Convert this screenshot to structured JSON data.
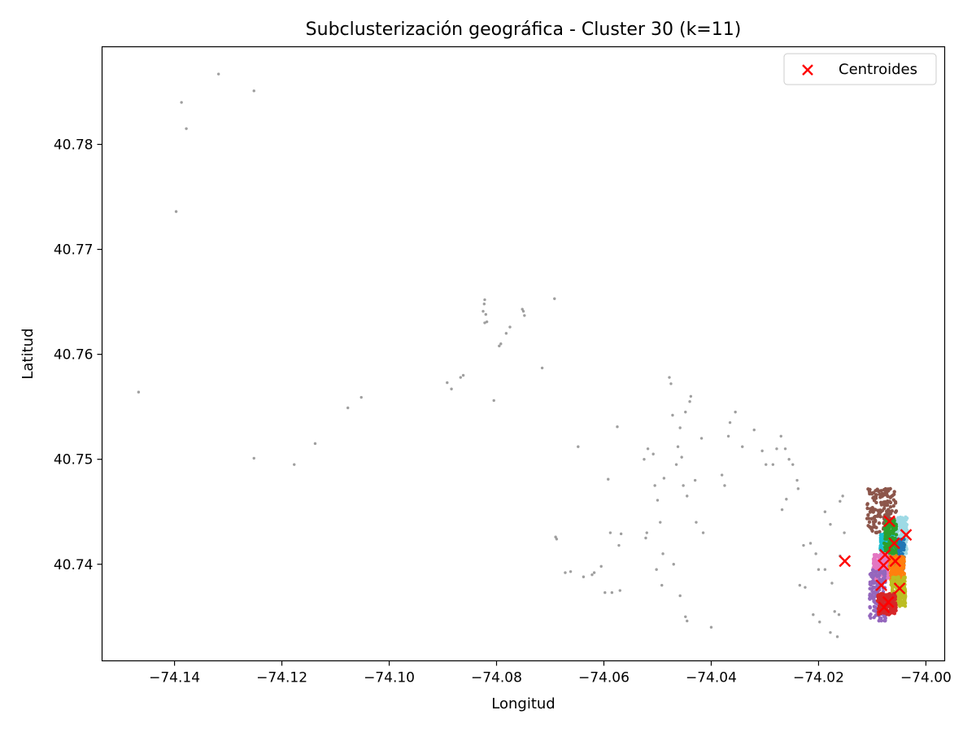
{
  "chart_data": {
    "type": "scatter",
    "title": "Subclusterización geográfica - Cluster 30 (k=11)",
    "xlabel": "Longitud",
    "ylabel": "Latitud",
    "xlim": [
      -74.1535,
      -73.9965
    ],
    "ylim": [
      40.7308,
      40.7893
    ],
    "x_ticks": [
      -74.14,
      -74.12,
      -74.1,
      -74.08,
      -74.06,
      -74.04,
      -74.02,
      -74.0
    ],
    "x_tick_labels": [
      "−74.14",
      "−74.12",
      "−74.10",
      "−74.08",
      "−74.06",
      "−74.04",
      "−74.02",
      "−74.00"
    ],
    "y_ticks": [
      40.74,
      40.75,
      40.76,
      40.77,
      40.78
    ],
    "y_tick_labels": [
      "40.74",
      "40.75",
      "40.76",
      "40.77",
      "40.78"
    ],
    "grid": false,
    "legend": {
      "position": "top-right",
      "entries": [
        {
          "label": "Centroides",
          "marker": "x",
          "color": "#ff0000"
        }
      ]
    },
    "series": [
      {
        "name": "",
        "color": "#7f7f7f",
        "marker": "dot",
        "points": [
          [
            -74.1318,
            40.7867
          ],
          [
            -74.1252,
            40.7851
          ],
          [
            -74.1387,
            40.784
          ],
          [
            -74.1378,
            40.7815
          ],
          [
            -74.1397,
            40.7736
          ],
          [
            -74.1467,
            40.7564
          ],
          [
            -74.1252,
            40.7501
          ],
          [
            -74.1177,
            40.7495
          ],
          [
            -74.1138,
            40.7515
          ],
          [
            -74.1077,
            40.7549
          ],
          [
            -74.1052,
            40.7559
          ],
          [
            -74.0892,
            40.7573
          ],
          [
            -74.0884,
            40.7567
          ],
          [
            -74.0867,
            40.7578
          ],
          [
            -74.0862,
            40.758
          ],
          [
            -74.0822,
            40.7652
          ],
          [
            -74.0823,
            40.7648
          ],
          [
            -74.0825,
            40.7641
          ],
          [
            -74.082,
            40.7638
          ],
          [
            -74.0818,
            40.7631
          ],
          [
            -74.0822,
            40.763
          ],
          [
            -74.0775,
            40.7626
          ],
          [
            -74.0782,
            40.762
          ],
          [
            -74.0792,
            40.761
          ],
          [
            -74.0795,
            40.7608
          ],
          [
            -74.0752,
            40.7643
          ],
          [
            -74.075,
            40.7641
          ],
          [
            -74.0748,
            40.7637
          ],
          [
            -74.0692,
            40.7653
          ],
          [
            -74.0715,
            40.7587
          ],
          [
            -74.0805,
            40.7556
          ],
          [
            -74.0688,
            40.7424
          ],
          [
            -74.069,
            40.7426
          ],
          [
            -74.0648,
            40.7512
          ],
          [
            -74.0662,
            40.7393
          ],
          [
            -74.0672,
            40.7392
          ],
          [
            -74.0638,
            40.7388
          ],
          [
            -74.0618,
            40.7392
          ],
          [
            -74.0622,
            40.739
          ],
          [
            -74.0605,
            40.7398
          ],
          [
            -74.0598,
            40.7373
          ],
          [
            -74.0585,
            40.7373
          ],
          [
            -74.057,
            40.7375
          ],
          [
            -74.0575,
            40.7531
          ],
          [
            -74.0592,
            40.7481
          ],
          [
            -74.0588,
            40.743
          ],
          [
            -74.0572,
            40.7418
          ],
          [
            -74.0568,
            40.7429
          ],
          [
            -74.0525,
            40.75
          ],
          [
            -74.0508,
            40.7505
          ],
          [
            -74.0518,
            40.751
          ],
          [
            -74.0488,
            40.7482
          ],
          [
            -74.05,
            40.7461
          ],
          [
            -74.0505,
            40.7475
          ],
          [
            -74.0495,
            40.744
          ],
          [
            -74.052,
            40.743
          ],
          [
            -74.0522,
            40.7425
          ],
          [
            -74.049,
            40.741
          ],
          [
            -74.0502,
            40.7395
          ],
          [
            -74.0492,
            40.738
          ],
          [
            -74.0472,
            40.7542
          ],
          [
            -74.0478,
            40.7578
          ],
          [
            -74.0475,
            40.7572
          ],
          [
            -74.0458,
            40.753
          ],
          [
            -74.0448,
            40.7545
          ],
          [
            -74.044,
            40.7555
          ],
          [
            -74.0438,
            40.756
          ],
          [
            -74.0418,
            40.752
          ],
          [
            -74.0462,
            40.7512
          ],
          [
            -74.0455,
            40.7502
          ],
          [
            -74.0465,
            40.7495
          ],
          [
            -74.0452,
            40.7475
          ],
          [
            -74.0445,
            40.7465
          ],
          [
            -74.043,
            40.748
          ],
          [
            -74.0428,
            40.744
          ],
          [
            -74.0415,
            40.743
          ],
          [
            -74.047,
            40.74
          ],
          [
            -74.0458,
            40.737
          ],
          [
            -74.0448,
            40.735
          ],
          [
            -74.0445,
            40.7346
          ],
          [
            -74.04,
            40.734
          ],
          [
            -74.038,
            40.7485
          ],
          [
            -74.0375,
            40.7475
          ],
          [
            -74.0368,
            40.7522
          ],
          [
            -74.0365,
            40.7535
          ],
          [
            -74.0355,
            40.7545
          ],
          [
            -74.0342,
            40.7512
          ],
          [
            -74.032,
            40.7528
          ],
          [
            -74.0305,
            40.7508
          ],
          [
            -74.0298,
            40.7495
          ],
          [
            -74.0285,
            40.7495
          ],
          [
            -74.0278,
            40.751
          ],
          [
            -74.027,
            40.7522
          ],
          [
            -74.0262,
            40.751
          ],
          [
            -74.0255,
            40.75
          ],
          [
            -74.0248,
            40.7495
          ],
          [
            -74.024,
            40.748
          ],
          [
            -74.0238,
            40.7472
          ],
          [
            -74.026,
            40.7462
          ],
          [
            -74.0268,
            40.7452
          ],
          [
            -74.0235,
            40.738
          ],
          [
            -74.0228,
            40.7418
          ],
          [
            -74.0215,
            40.742
          ],
          [
            -74.0205,
            40.741
          ],
          [
            -74.02,
            40.7395
          ],
          [
            -74.0188,
            40.7395
          ],
          [
            -74.0175,
            40.7382
          ],
          [
            -74.017,
            40.7355
          ],
          [
            -74.0162,
            40.7352
          ],
          [
            -74.0178,
            40.7335
          ],
          [
            -74.0165,
            40.7331
          ],
          [
            -74.0188,
            40.745
          ],
          [
            -74.0178,
            40.7438
          ],
          [
            -74.016,
            40.746
          ],
          [
            -74.0155,
            40.7465
          ],
          [
            -74.0152,
            40.743
          ],
          [
            -74.021,
            40.7352
          ],
          [
            -74.0198,
            40.7345
          ],
          [
            -74.0225,
            40.7378
          ],
          [
            -74.016,
            40.7408
          ]
        ]
      },
      {
        "name": "",
        "color": "#8c564b",
        "marker": "dot",
        "region": {
          "lon": [
            -74.011,
            -74.0055
          ],
          "lat": [
            40.743,
            40.7472
          ]
        }
      },
      {
        "name": "",
        "color": "#9edae5",
        "marker": "dot",
        "region": {
          "lon": [
            -74.006,
            -74.0035
          ],
          "lat": [
            40.741,
            40.7445
          ]
        }
      },
      {
        "name": "",
        "color": "#1f77b4",
        "marker": "dot",
        "region": {
          "lon": [
            -74.0065,
            -74.004
          ],
          "lat": [
            40.7395,
            40.7425
          ]
        }
      },
      {
        "name": "",
        "color": "#17becf",
        "marker": "dot",
        "region": {
          "lon": [
            -74.0085,
            -74.006
          ],
          "lat": [
            40.7398,
            40.743
          ]
        }
      },
      {
        "name": "",
        "color": "#2ca02c",
        "marker": "dot",
        "region": {
          "lon": [
            -74.0078,
            -74.0055
          ],
          "lat": [
            40.741,
            40.7442
          ]
        }
      },
      {
        "name": "",
        "color": "#ff7f0e",
        "marker": "dot",
        "region": {
          "lon": [
            -74.0068,
            -74.004
          ],
          "lat": [
            40.7385,
            40.7408
          ]
        }
      },
      {
        "name": "",
        "color": "#e377c2",
        "marker": "dot",
        "region": {
          "lon": [
            -74.0098,
            -74.007
          ],
          "lat": [
            40.7385,
            40.741
          ]
        }
      },
      {
        "name": "",
        "color": "#bcbd22",
        "marker": "dot",
        "region": {
          "lon": [
            -74.0065,
            -74.0038
          ],
          "lat": [
            40.736,
            40.7388
          ]
        }
      },
      {
        "name": "",
        "color": "#9467bd",
        "marker": "dot",
        "region": {
          "lon": [
            -74.0105,
            -74.0075
          ],
          "lat": [
            40.7346,
            40.7395
          ]
        }
      },
      {
        "name": "",
        "color": "#d62728",
        "marker": "dot",
        "region": {
          "lon": [
            -74.009,
            -74.0055
          ],
          "lat": [
            40.7352,
            40.7372
          ]
        }
      }
    ],
    "centroids": {
      "name": "Centroides",
      "color": "#ff0000",
      "marker": "x",
      "points": [
        [
          -74.0068,
          40.7441
        ],
        [
          -74.0037,
          40.7428
        ],
        [
          -74.0059,
          40.742
        ],
        [
          -74.0076,
          40.7409
        ],
        [
          -74.0079,
          40.7399
        ],
        [
          -74.0057,
          40.7403
        ],
        [
          -74.0151,
          40.7403
        ],
        [
          -74.0083,
          40.738
        ],
        [
          -74.0049,
          40.7377
        ],
        [
          -74.007,
          40.7364
        ],
        [
          -74.0078,
          40.7359
        ]
      ]
    }
  }
}
